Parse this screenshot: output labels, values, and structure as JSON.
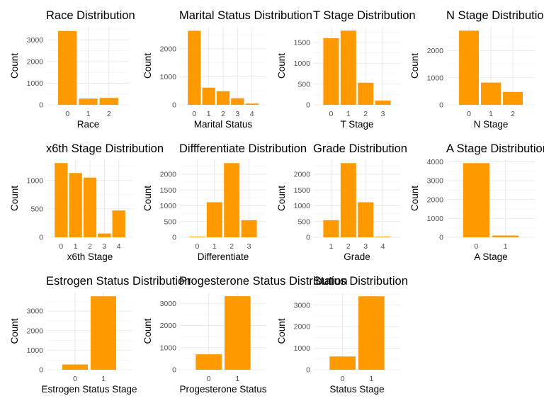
{
  "chart_data": [
    {
      "type": "bar",
      "title": "Race Distribution",
      "xlabel": "Race",
      "ylabel": "Count",
      "categories": [
        "0",
        "1",
        "2"
      ],
      "values": [
        3413,
        291,
        320
      ],
      "ylim": [
        0,
        3600
      ],
      "yticks": [
        0,
        1000,
        2000,
        3000
      ],
      "bar_color": "#FF9900",
      "grid": true
    },
    {
      "type": "bar",
      "title": "Marital Status Distribution",
      "xlabel": "Marital Status",
      "ylabel": "Count",
      "categories": [
        "0",
        "1",
        "2",
        "3",
        "4"
      ],
      "values": [
        2643,
        615,
        486,
        235,
        45
      ],
      "ylim": [
        0,
        2780
      ],
      "yticks": [
        0,
        1000,
        2000
      ],
      "bar_color": "#FF9900",
      "grid": true
    },
    {
      "type": "bar",
      "title": "T Stage Distribution",
      "xlabel": "T Stage",
      "ylabel": "Count",
      "categories": [
        "0",
        "1",
        "2",
        "3"
      ],
      "values": [
        1603,
        1786,
        533,
        102
      ],
      "ylim": [
        0,
        1875
      ],
      "yticks": [
        0,
        500,
        1000,
        1500
      ],
      "bar_color": "#FF9900",
      "grid": true
    },
    {
      "type": "bar",
      "title": "N Stage Distribution",
      "xlabel": "N Stage",
      "ylabel": "Count",
      "categories": [
        "0",
        "1",
        "2"
      ],
      "values": [
        2732,
        820,
        472
      ],
      "ylim": [
        0,
        2870
      ],
      "yticks": [
        0,
        1000,
        2000
      ],
      "bar_color": "#FF9900",
      "grid": true
    },
    {
      "type": "bar",
      "title": "x6th Stage Distribution",
      "xlabel": "x6th Stage",
      "ylabel": "Count",
      "categories": [
        "0",
        "1",
        "2",
        "3",
        "4"
      ],
      "values": [
        1305,
        1130,
        1050,
        67,
        472
      ],
      "ylim": [
        0,
        1370
      ],
      "yticks": [
        0,
        500,
        1000
      ],
      "bar_color": "#FF9900",
      "grid": true
    },
    {
      "type": "bar",
      "title": "Diffferentiate Distribution",
      "xlabel": "Differentiate",
      "ylabel": "Count",
      "categories": [
        "0",
        "1",
        "2",
        "3"
      ],
      "values": [
        19,
        1111,
        2351,
        543
      ],
      "ylim": [
        0,
        2470
      ],
      "yticks": [
        0,
        500,
        1000,
        1500,
        2000
      ],
      "bar_color": "#FF9900",
      "grid": true
    },
    {
      "type": "bar",
      "title": "Grade Distribution",
      "xlabel": "Grade",
      "ylabel": "Count",
      "categories": [
        "1",
        "2",
        "3",
        "4"
      ],
      "values": [
        543,
        2351,
        1111,
        19
      ],
      "ylim": [
        0,
        2470
      ],
      "yticks": [
        0,
        500,
        1000,
        1500,
        2000
      ],
      "bar_color": "#FF9900",
      "grid": true
    },
    {
      "type": "bar",
      "title": "A Stage Distribution",
      "xlabel": "A Stage",
      "ylabel": "Count",
      "categories": [
        "0",
        "1"
      ],
      "values": [
        3932,
        92
      ],
      "ylim": [
        0,
        4130
      ],
      "yticks": [
        0,
        1000,
        2000,
        3000,
        4000
      ],
      "bar_color": "#FF9900",
      "grid": true
    },
    {
      "type": "bar",
      "title": "Estrogen Status Distribution",
      "xlabel": "Estrogen Status Stage",
      "ylabel": "Count",
      "categories": [
        "0",
        "1"
      ],
      "values": [
        269,
        3755
      ],
      "ylim": [
        0,
        3945
      ],
      "yticks": [
        0,
        1000,
        2000,
        3000
      ],
      "bar_color": "#FF9900",
      "grid": true
    },
    {
      "type": "bar",
      "title": "Progesterone Status Distribution",
      "xlabel": "Progesterone Status",
      "ylabel": "Count",
      "categories": [
        "0",
        "1"
      ],
      "values": [
        698,
        3326
      ],
      "ylim": [
        0,
        3490
      ],
      "yticks": [
        0,
        1000,
        2000,
        3000
      ],
      "bar_color": "#FF9900",
      "grid": true
    },
    {
      "type": "bar",
      "title": "Status Distribution",
      "xlabel": "Status Stage",
      "ylabel": "Count",
      "categories": [
        "0",
        "1"
      ],
      "values": [
        616,
        3408
      ],
      "ylim": [
        0,
        3580
      ],
      "yticks": [
        0,
        1000,
        2000,
        3000
      ],
      "bar_color": "#FF9900",
      "grid": true
    }
  ]
}
